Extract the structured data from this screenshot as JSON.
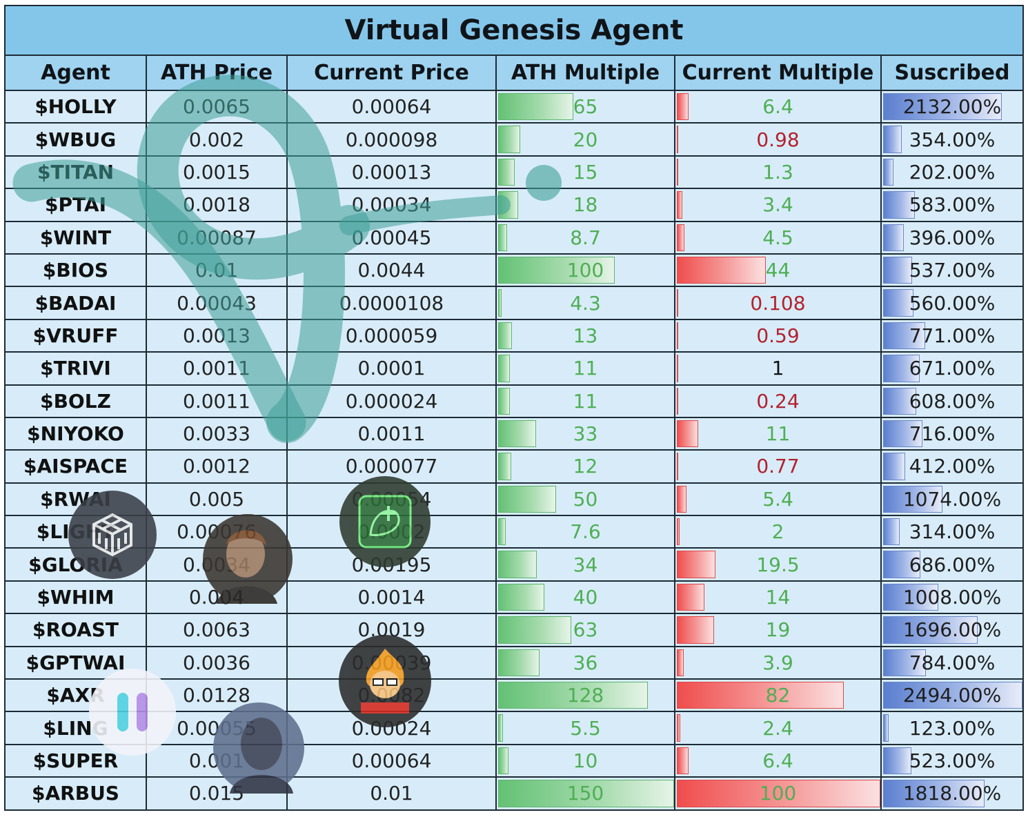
{
  "title": "Virtual Genesis Agent",
  "headers": {
    "agent": "Agent",
    "ath_price": "ATH Price",
    "current_price": "Current Price",
    "ath_multiple": "ATH Multiple",
    "current_multiple": "Current Multiple",
    "subscribed": "Suscribed"
  },
  "colors": {
    "title_bg": "#84c6ea",
    "header_bg": "#9fd3f0",
    "cell_bg": "#d7ecf8",
    "ath_bar": "#63c174",
    "current_bar": "#f04d4d",
    "subscribed_bar": "#5b7fcf",
    "text_green": "#4fae54",
    "text_red": "#b3212e",
    "watermark": "#5aa9a2"
  },
  "rows": [
    {
      "agent": "$HOLLY",
      "ath_price": "0.0065",
      "current_price": "0.00064",
      "ath_multiple": "65",
      "current_multiple": "6.4",
      "cm_color": "g",
      "subscribed": "2132.00%",
      "ath_val": 65,
      "cm_val": 6.4,
      "sub_val": 2132
    },
    {
      "agent": "$WBUG",
      "ath_price": "0.002",
      "current_price": "0.000098",
      "ath_multiple": "20",
      "current_multiple": "0.98",
      "cm_color": "r",
      "subscribed": "354.00%",
      "ath_val": 20,
      "cm_val": 0.98,
      "sub_val": 354
    },
    {
      "agent": "$TITAN",
      "ath_price": "0.0015",
      "current_price": "0.00013",
      "ath_multiple": "15",
      "current_multiple": "1.3",
      "cm_color": "g",
      "subscribed": "202.00%",
      "ath_val": 15,
      "cm_val": 1.3,
      "sub_val": 202
    },
    {
      "agent": "$PTAI",
      "ath_price": "0.0018",
      "current_price": "0.00034",
      "ath_multiple": "18",
      "current_multiple": "3.4",
      "cm_color": "g",
      "subscribed": "583.00%",
      "ath_val": 18,
      "cm_val": 3.4,
      "sub_val": 583
    },
    {
      "agent": "$WINT",
      "ath_price": "0.00087",
      "current_price": "0.00045",
      "ath_multiple": "8.7",
      "current_multiple": "4.5",
      "cm_color": "g",
      "subscribed": "396.00%",
      "ath_val": 8.7,
      "cm_val": 4.5,
      "sub_val": 396
    },
    {
      "agent": "$BIOS",
      "ath_price": "0.01",
      "current_price": "0.0044",
      "ath_multiple": "100",
      "current_multiple": "44",
      "cm_color": "g",
      "subscribed": "537.00%",
      "ath_val": 100,
      "cm_val": 44,
      "sub_val": 537
    },
    {
      "agent": "$BADAI",
      "ath_price": "0.00043",
      "current_price": "0.0000108",
      "ath_multiple": "4.3",
      "current_multiple": "0.108",
      "cm_color": "r",
      "subscribed": "560.00%",
      "ath_val": 4.3,
      "cm_val": 0.108,
      "sub_val": 560
    },
    {
      "agent": "$VRUFF",
      "ath_price": "0.0013",
      "current_price": "0.000059",
      "ath_multiple": "13",
      "current_multiple": "0.59",
      "cm_color": "r",
      "subscribed": "771.00%",
      "ath_val": 13,
      "cm_val": 0.59,
      "sub_val": 771
    },
    {
      "agent": "$TRIVI",
      "ath_price": "0.0011",
      "current_price": "0.0001",
      "ath_multiple": "11",
      "current_multiple": "1",
      "cm_color": "k",
      "subscribed": "671.00%",
      "ath_val": 11,
      "cm_val": 1,
      "sub_val": 671
    },
    {
      "agent": "$BOLZ",
      "ath_price": "0.0011",
      "current_price": "0.000024",
      "ath_multiple": "11",
      "current_multiple": "0.24",
      "cm_color": "r",
      "subscribed": "608.00%",
      "ath_val": 11,
      "cm_val": 0.24,
      "sub_val": 608
    },
    {
      "agent": "$NIYOKO",
      "ath_price": "0.0033",
      "current_price": "0.0011",
      "ath_multiple": "33",
      "current_multiple": "11",
      "cm_color": "g",
      "subscribed": "716.00%",
      "ath_val": 33,
      "cm_val": 11,
      "sub_val": 716
    },
    {
      "agent": "$AISPACE",
      "ath_price": "0.0012",
      "current_price": "0.000077",
      "ath_multiple": "12",
      "current_multiple": "0.77",
      "cm_color": "r",
      "subscribed": "412.00%",
      "ath_val": 12,
      "cm_val": 0.77,
      "sub_val": 412
    },
    {
      "agent": "$RWAI",
      "ath_price": "0.005",
      "current_price": "0.00054",
      "ath_multiple": "50",
      "current_multiple": "5.4",
      "cm_color": "g",
      "subscribed": "1074.00%",
      "ath_val": 50,
      "cm_val": 5.4,
      "sub_val": 1074
    },
    {
      "agent": "$LIGHT",
      "ath_price": "0.00076",
      "current_price": "0.0002",
      "ath_multiple": "7.6",
      "current_multiple": "2",
      "cm_color": "g",
      "subscribed": "314.00%",
      "ath_val": 7.6,
      "cm_val": 2,
      "sub_val": 314
    },
    {
      "agent": "$GLORIA",
      "ath_price": "0.0034",
      "current_price": "0.00195",
      "ath_multiple": "34",
      "current_multiple": "19.5",
      "cm_color": "g",
      "subscribed": "686.00%",
      "ath_val": 34,
      "cm_val": 19.5,
      "sub_val": 686
    },
    {
      "agent": "$WHIM",
      "ath_price": "0.004",
      "current_price": "0.0014",
      "ath_multiple": "40",
      "current_multiple": "14",
      "cm_color": "g",
      "subscribed": "1008.00%",
      "ath_val": 40,
      "cm_val": 14,
      "sub_val": 1008
    },
    {
      "agent": "$ROAST",
      "ath_price": "0.0063",
      "current_price": "0.0019",
      "ath_multiple": "63",
      "current_multiple": "19",
      "cm_color": "g",
      "subscribed": "1696.00%",
      "ath_val": 63,
      "cm_val": 19,
      "sub_val": 1696
    },
    {
      "agent": "$GPTWAI",
      "ath_price": "0.0036",
      "current_price": "0.00039",
      "ath_multiple": "36",
      "current_multiple": "3.9",
      "cm_color": "g",
      "subscribed": "784.00%",
      "ath_val": 36,
      "cm_val": 3.9,
      "sub_val": 784
    },
    {
      "agent": "$AXR",
      "ath_price": "0.0128",
      "current_price": "0.0082",
      "ath_multiple": "128",
      "current_multiple": "82",
      "cm_color": "g",
      "subscribed": "2494.00%",
      "ath_val": 128,
      "cm_val": 82,
      "sub_val": 2494
    },
    {
      "agent": "$LING",
      "ath_price": "0.00055",
      "current_price": "0.00024",
      "ath_multiple": "5.5",
      "current_multiple": "2.4",
      "cm_color": "g",
      "subscribed": "123.00%",
      "ath_val": 5.5,
      "cm_val": 2.4,
      "sub_val": 123
    },
    {
      "agent": "$SUPER",
      "ath_price": "0.001",
      "current_price": "0.00064",
      "ath_multiple": "10",
      "current_multiple": "6.4",
      "cm_color": "g",
      "subscribed": "523.00%",
      "ath_val": 10,
      "cm_val": 6.4,
      "sub_val": 523
    },
    {
      "agent": "$ARBUS",
      "ath_price": "0.015",
      "current_price": "0.01",
      "ath_multiple": "150",
      "current_multiple": "100",
      "cm_color": "g",
      "subscribed": "1818.00%",
      "ath_val": 150,
      "cm_val": 100,
      "sub_val": 1818
    }
  ],
  "bar_scale": {
    "ath_max": 150,
    "current_max": 100,
    "subscribed_max": 2494
  },
  "overlay_icons": [
    {
      "name": "cube-logo-icon"
    },
    {
      "name": "portrait-avatar-icon"
    },
    {
      "name": "green-rat-avatar-icon"
    },
    {
      "name": "fire-character-avatar-icon"
    },
    {
      "name": "pill-bars-logo-icon"
    },
    {
      "name": "shadow-avatar-icon"
    }
  ]
}
